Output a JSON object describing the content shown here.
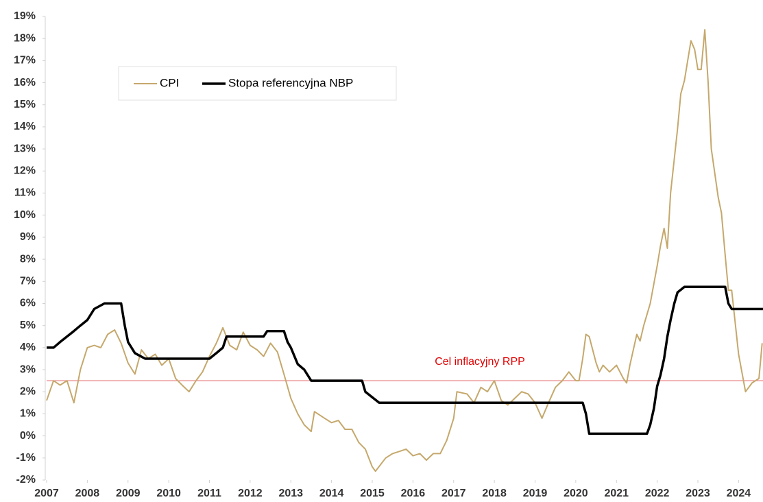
{
  "chart_data": {
    "type": "line",
    "xlim": [
      2007,
      2024.6
    ],
    "xticks": [
      2007,
      2008,
      2009,
      2010,
      2011,
      2012,
      2013,
      2014,
      2015,
      2016,
      2017,
      2018,
      2019,
      2020,
      2021,
      2022,
      2023,
      2024
    ],
    "ylim": [
      -2,
      19
    ],
    "yticks": [
      {
        "value": -2,
        "label": "-2%"
      },
      {
        "value": -1,
        "label": "-1%"
      },
      {
        "value": 0,
        "label": "0%"
      },
      {
        "value": 1,
        "label": "1%"
      },
      {
        "value": 2,
        "label": "2%"
      },
      {
        "value": 3,
        "label": "3%"
      },
      {
        "value": 4,
        "label": "4%"
      },
      {
        "value": 5,
        "label": "5%"
      },
      {
        "value": 6,
        "label": "6%"
      },
      {
        "value": 7,
        "label": "7%"
      },
      {
        "value": 8,
        "label": "8%"
      },
      {
        "value": 9,
        "label": "9%"
      },
      {
        "value": 10,
        "label": "10%"
      },
      {
        "value": 11,
        "label": "11%"
      },
      {
        "value": 12,
        "label": "12%"
      },
      {
        "value": 13,
        "label": "13%"
      },
      {
        "value": 14,
        "label": "14%"
      },
      {
        "value": 15,
        "label": "15%"
      },
      {
        "value": 16,
        "label": "16%"
      },
      {
        "value": 17,
        "label": "17%"
      },
      {
        "value": 18,
        "label": "18%"
      },
      {
        "value": 19,
        "label": "19%"
      }
    ],
    "target": {
      "label": "Cel inflacyjny RPP",
      "value": 2.5,
      "color": "#e06060"
    },
    "series": [
      {
        "name": "CPI",
        "color": "#c5a86c",
        "x": [
          2007.0,
          2007.17,
          2007.33,
          2007.5,
          2007.67,
          2007.83,
          2008.0,
          2008.17,
          2008.33,
          2008.5,
          2008.67,
          2008.83,
          2009.0,
          2009.17,
          2009.33,
          2009.5,
          2009.67,
          2009.83,
          2010.0,
          2010.17,
          2010.33,
          2010.5,
          2010.67,
          2010.83,
          2011.0,
          2011.17,
          2011.33,
          2011.5,
          2011.67,
          2011.83,
          2012.0,
          2012.17,
          2012.33,
          2012.5,
          2012.67,
          2012.83,
          2013.0,
          2013.17,
          2013.33,
          2013.5,
          2013.58,
          2013.83,
          2014.0,
          2014.17,
          2014.33,
          2014.5,
          2014.67,
          2014.83,
          2015.0,
          2015.08,
          2015.33,
          2015.5,
          2015.67,
          2015.83,
          2016.0,
          2016.17,
          2016.33,
          2016.5,
          2016.67,
          2016.83,
          2017.0,
          2017.08,
          2017.33,
          2017.5,
          2017.67,
          2017.83,
          2018.0,
          2018.17,
          2018.33,
          2018.5,
          2018.67,
          2018.83,
          2019.0,
          2019.17,
          2019.33,
          2019.5,
          2019.67,
          2019.83,
          2020.0,
          2020.08,
          2020.17,
          2020.25,
          2020.33,
          2020.5,
          2020.58,
          2020.67,
          2020.83,
          2021.0,
          2021.17,
          2021.25,
          2021.33,
          2021.5,
          2021.58,
          2021.67,
          2021.83,
          2022.0,
          2022.08,
          2022.17,
          2022.25,
          2022.33,
          2022.5,
          2022.58,
          2022.67,
          2022.83,
          2022.92,
          2023.0,
          2023.08,
          2023.17,
          2023.25,
          2023.33,
          2023.5,
          2023.58,
          2023.67,
          2023.75,
          2023.83,
          2024.0,
          2024.17,
          2024.33,
          2024.5,
          2024.58
        ],
        "values": [
          1.6,
          2.5,
          2.3,
          2.5,
          1.5,
          3.0,
          4.0,
          4.1,
          4.0,
          4.6,
          4.8,
          4.2,
          3.3,
          2.8,
          3.9,
          3.5,
          3.7,
          3.2,
          3.5,
          2.6,
          2.3,
          2.0,
          2.5,
          2.9,
          3.6,
          4.2,
          4.9,
          4.1,
          3.9,
          4.7,
          4.1,
          3.9,
          3.6,
          4.2,
          3.8,
          2.8,
          1.7,
          1.0,
          0.5,
          0.2,
          1.1,
          0.8,
          0.6,
          0.7,
          0.3,
          0.3,
          -0.3,
          -0.6,
          -1.4,
          -1.6,
          -1.0,
          -0.8,
          -0.7,
          -0.6,
          -0.9,
          -0.8,
          -1.1,
          -0.8,
          -0.8,
          -0.2,
          0.8,
          2.0,
          1.9,
          1.5,
          2.2,
          2.0,
          2.5,
          1.6,
          1.4,
          1.7,
          2.0,
          1.9,
          1.5,
          0.8,
          1.5,
          2.2,
          2.5,
          2.9,
          2.5,
          2.5,
          3.5,
          4.6,
          4.5,
          3.3,
          2.9,
          3.2,
          2.9,
          3.2,
          2.6,
          2.4,
          3.2,
          4.6,
          4.3,
          5.0,
          6.0,
          7.7,
          8.6,
          9.4,
          8.5,
          11.0,
          13.9,
          15.5,
          16.1,
          17.9,
          17.5,
          16.6,
          16.6,
          18.4,
          16.1,
          13.0,
          10.8,
          10.1,
          8.2,
          6.6,
          6.6,
          3.7,
          2.0,
          2.4,
          2.6,
          4.2
        ]
      },
      {
        "name": "Stopa referencyjna NBP",
        "color": "#000000",
        "x": [
          2007.0,
          2007.17,
          2007.33,
          2007.5,
          2007.67,
          2007.83,
          2008.0,
          2008.17,
          2008.42,
          2008.83,
          2008.92,
          2009.0,
          2009.17,
          2009.42,
          2011.0,
          2011.17,
          2011.33,
          2011.42,
          2012.33,
          2012.42,
          2012.83,
          2012.92,
          2013.0,
          2013.17,
          2013.33,
          2013.5,
          2014.75,
          2014.83,
          2015.17,
          2020.17,
          2020.25,
          2020.33,
          2021.75,
          2021.83,
          2021.92,
          2022.0,
          2022.08,
          2022.17,
          2022.25,
          2022.33,
          2022.42,
          2022.5,
          2022.67,
          2023.67,
          2023.75,
          2023.83,
          2024.6
        ],
        "values": [
          4.0,
          4.0,
          4.25,
          4.5,
          4.75,
          5.0,
          5.25,
          5.75,
          6.0,
          6.0,
          5.0,
          4.25,
          3.75,
          3.5,
          3.5,
          3.75,
          4.0,
          4.5,
          4.5,
          4.75,
          4.75,
          4.25,
          4.0,
          3.25,
          3.0,
          2.5,
          2.5,
          2.0,
          1.5,
          1.5,
          1.0,
          0.1,
          0.1,
          0.5,
          1.25,
          2.25,
          2.75,
          3.5,
          4.5,
          5.25,
          6.0,
          6.5,
          6.75,
          6.75,
          6.0,
          5.75,
          5.75
        ]
      }
    ]
  }
}
